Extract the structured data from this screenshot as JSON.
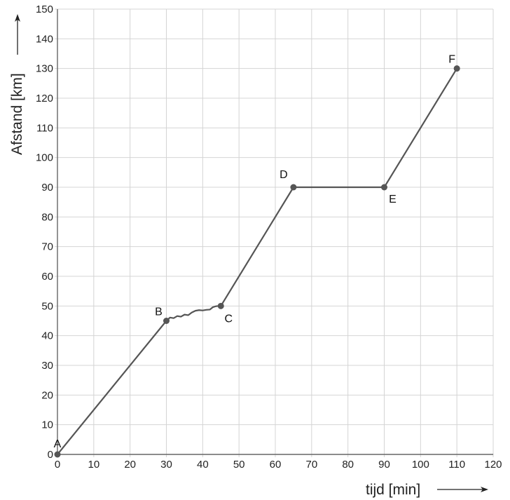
{
  "chart_data": {
    "type": "line",
    "xlabel": "tijd [min]",
    "ylabel": "Afstand [km]",
    "xlim": [
      0,
      120
    ],
    "ylim": [
      0,
      150
    ],
    "x_ticks": [
      0,
      10,
      20,
      30,
      40,
      50,
      60,
      70,
      80,
      90,
      100,
      110,
      120
    ],
    "y_ticks": [
      0,
      10,
      20,
      30,
      40,
      50,
      60,
      70,
      80,
      90,
      100,
      110,
      120,
      130,
      140,
      150
    ],
    "grid": true,
    "series": [
      {
        "points": [
          {
            "label": "A",
            "x": 0,
            "y": 0
          },
          {
            "label": "B",
            "x": 30,
            "y": 45
          },
          {
            "label": "C",
            "x": 45,
            "y": 50
          },
          {
            "label": "D",
            "x": 65,
            "y": 90
          },
          {
            "label": "E",
            "x": 90,
            "y": 90
          },
          {
            "label": "F",
            "x": 110,
            "y": 130
          }
        ],
        "wavy_segment": {
          "from": "B",
          "to": "C",
          "path": [
            [
              30,
              45
            ],
            [
              31,
              46.1
            ],
            [
              32,
              45.9
            ],
            [
              33,
              46.6
            ],
            [
              34,
              46.4
            ],
            [
              35,
              47.1
            ],
            [
              36,
              46.9
            ],
            [
              37,
              47.8
            ],
            [
              38,
              48.4
            ],
            [
              39,
              48.6
            ],
            [
              40,
              48.5
            ],
            [
              41,
              48.7
            ],
            [
              42,
              48.8
            ],
            [
              42.8,
              49.6
            ],
            [
              43.6,
              49.9
            ],
            [
              44.3,
              50
            ],
            [
              45,
              50
            ]
          ]
        }
      }
    ],
    "line_color": "#555555",
    "grid_color": "#d4d4d4"
  }
}
